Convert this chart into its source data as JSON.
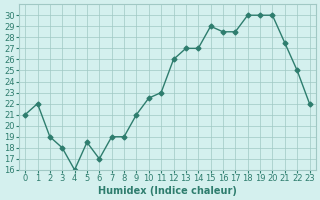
{
  "x": [
    0,
    1,
    2,
    3,
    4,
    5,
    6,
    7,
    8,
    9,
    10,
    11,
    12,
    13,
    14,
    15,
    16,
    17,
    18,
    19,
    20,
    21,
    22,
    23
  ],
  "y": [
    21,
    22,
    19,
    18,
    16,
    18.5,
    17,
    19,
    19,
    21,
    22.5,
    23,
    26,
    27,
    27,
    29,
    28.5,
    28.5,
    30,
    30,
    30,
    27.5,
    25,
    22
  ],
  "xlabel": "Humidex (Indice chaleur)",
  "ylim": [
    16,
    31
  ],
  "xlim": [
    -0.5,
    23.5
  ],
  "yticks": [
    16,
    17,
    18,
    19,
    20,
    21,
    22,
    23,
    24,
    25,
    26,
    27,
    28,
    29,
    30
  ],
  "xticks": [
    0,
    1,
    2,
    3,
    4,
    5,
    6,
    7,
    8,
    9,
    10,
    11,
    12,
    13,
    14,
    15,
    16,
    17,
    18,
    19,
    20,
    21,
    22,
    23
  ],
  "line_color": "#2e7d6e",
  "marker": "D",
  "marker_size": 2.5,
  "bg_color": "#d4f0ee",
  "grid_color": "#a0c8c4",
  "label_fontsize": 7,
  "tick_fontsize": 6
}
